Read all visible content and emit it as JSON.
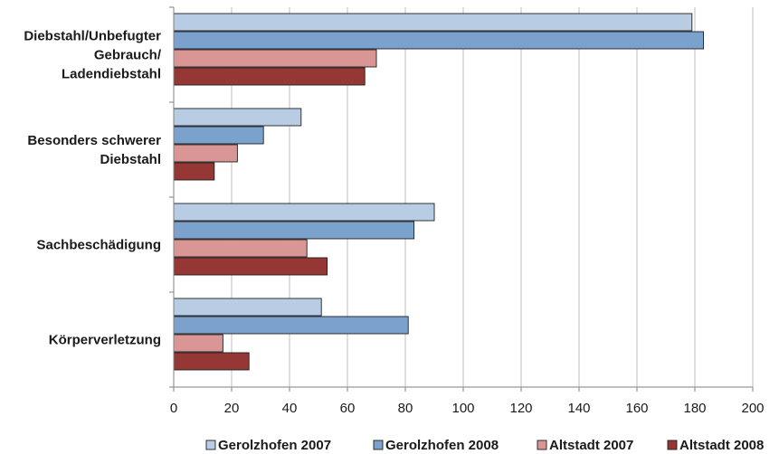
{
  "chart_data": {
    "type": "bar",
    "orientation": "horizontal",
    "categories": [
      [
        "Diebstahl/Unbefugter",
        "Gebrauch/",
        "Ladendiebstahl"
      ],
      [
        "Besonders schwerer",
        "Diebstahl"
      ],
      [
        "Sachbeschädigung"
      ],
      [
        "Körperverletzung"
      ]
    ],
    "series": [
      {
        "name": "Gerolzhofen 2007",
        "color": "#b8cce4",
        "values": [
          179,
          44,
          90,
          51
        ]
      },
      {
        "name": "Gerolzhofen 2008",
        "color": "#7ba1cd",
        "values": [
          183,
          31,
          83,
          81
        ]
      },
      {
        "name": "Altstadt 2007",
        "color": "#d99694",
        "values": [
          70,
          22,
          46,
          17
        ]
      },
      {
        "name": "Altstadt 2008",
        "color": "#953735",
        "values": [
          66,
          14,
          53,
          26
        ]
      }
    ],
    "xlim": [
      0,
      200
    ],
    "xticks": [
      "0",
      "20",
      "40",
      "60",
      "80",
      "100",
      "120",
      "140",
      "160",
      "180",
      "200"
    ],
    "grid": true,
    "legend_position": "bottom",
    "title": "",
    "xlabel": "",
    "ylabel": ""
  }
}
